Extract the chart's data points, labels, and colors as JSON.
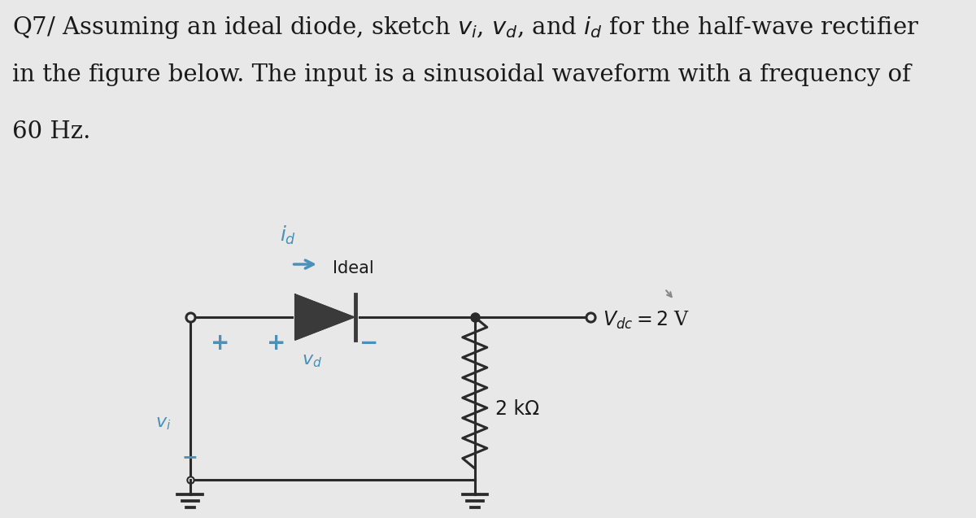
{
  "bg_color": "#e8e8e8",
  "text_color": "#1a1a1a",
  "circuit_color": "#2a2a2a",
  "diode_color": "#3a3a3a",
  "blue_color": "#4a90b8",
  "label_id": "$i_d$",
  "label_vd": "$v_d$",
  "label_vi": "$v_i$",
  "label_ideal": "Ideal",
  "label_vdc": "$V_{dc} = 2$ V",
  "label_2kohm": "2 kΩ",
  "label_plus": "+",
  "label_minus": "−",
  "font_size_title": 21,
  "font_size_circuit": 17,
  "font_size_label": 16
}
